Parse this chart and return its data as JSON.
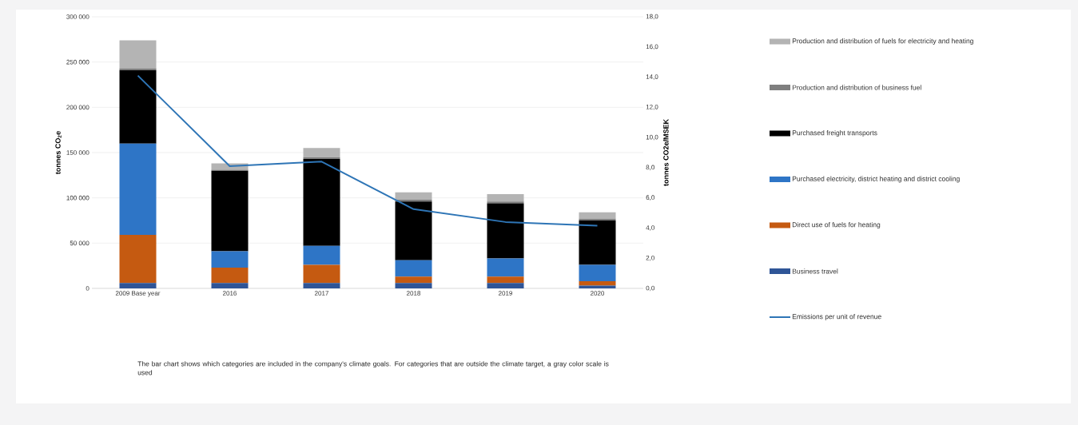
{
  "chart_data": {
    "type": "bar",
    "stacked": true,
    "ylabel": "tonnes CO$_{2}$e",
    "y2label": "tonnes CO2e/MSEK",
    "categories": [
      "2009 Base year",
      "2016",
      "2017",
      "2018",
      "2019",
      "2020"
    ],
    "series": [
      {
        "name": "Business travel",
        "color": "#2f5597",
        "values": [
          6000,
          6000,
          6000,
          6000,
          6000,
          3000
        ]
      },
      {
        "name": "Direct use of fuels for heating",
        "color": "#c55a11",
        "values": [
          53000,
          17000,
          20000,
          7000,
          7000,
          5000
        ]
      },
      {
        "name": "Purchased electricity, district heating and district cooling",
        "color": "#2e75c6",
        "values": [
          101000,
          18000,
          21000,
          18000,
          20000,
          18000
        ]
      },
      {
        "name": "Purchased freight transports",
        "color": "#000000",
        "values": [
          81000,
          89000,
          96000,
          65000,
          61000,
          49000
        ]
      },
      {
        "name": "Production and distribution of business fuel",
        "color": "#7f7f7f",
        "values": [
          2000,
          1000,
          2000,
          2000,
          2000,
          2000
        ]
      },
      {
        "name": "Production and distribution of fuels for electricity and heating",
        "color": "#b4b4b4",
        "values": [
          31000,
          7000,
          10000,
          8000,
          8000,
          7000
        ]
      },
      {
        "name": "Emissions per unit of revenue",
        "type": "line",
        "axis": "y2",
        "color": "#2e75b6",
        "values": [
          14.1,
          8.1,
          8.4,
          5.25,
          4.4,
          4.15
        ]
      }
    ],
    "ylim": [
      0,
      300000
    ],
    "yticks": [
      {
        "value": 0,
        "label": "0"
      },
      {
        "value": 50000,
        "label": "50 000"
      },
      {
        "value": 100000,
        "label": "100 000"
      },
      {
        "value": 150000,
        "label": "150 000"
      },
      {
        "value": 200000,
        "label": "200 000"
      },
      {
        "value": 250000,
        "label": "250 000"
      },
      {
        "value": 300000,
        "label": "300 000"
      }
    ],
    "y2lim": [
      0,
      18
    ],
    "y2ticks": [
      {
        "value": 0,
        "label": "0,0"
      },
      {
        "value": 2,
        "label": "2,0"
      },
      {
        "value": 4,
        "label": "4,0"
      },
      {
        "value": 6,
        "label": "6,0"
      },
      {
        "value": 8,
        "label": "8,0"
      },
      {
        "value": 10,
        "label": "10,0"
      },
      {
        "value": 12,
        "label": "12,0"
      },
      {
        "value": 14,
        "label": "14,0"
      },
      {
        "value": 16,
        "label": "16,0"
      },
      {
        "value": 18,
        "label": "18,0"
      }
    ],
    "grid": "y",
    "legend": "right",
    "marker": "none",
    "line_style": "solid",
    "annotations": [
      "The bar chart shows which categories are included in the company's climate goals. For categories that are outside the climate target, a gray color scale is used"
    ]
  }
}
